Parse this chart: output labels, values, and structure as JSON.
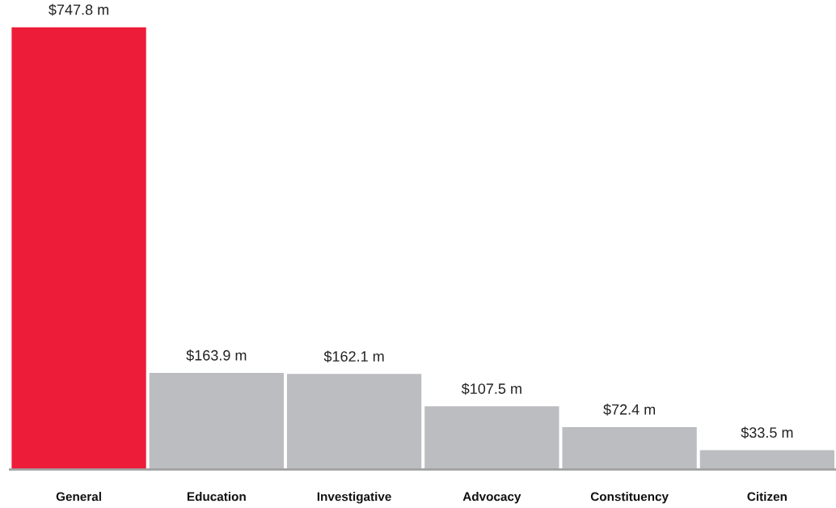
{
  "chart_data": {
    "type": "bar",
    "categories": [
      "General",
      "Education",
      "Investigative",
      "Advocacy",
      "Constituency",
      "Citizen"
    ],
    "values": [
      747.8,
      163.9,
      162.1,
      107.5,
      72.4,
      33.5
    ],
    "colors": [
      "#ed1c39",
      "#bcbdc0",
      "#bcbdc0",
      "#bcbdc0",
      "#bcbdc0",
      "#bcbdc0"
    ],
    "value_labels": [
      "$747.8 m",
      "$163.9 m",
      "$162.1 m",
      "$107.5 m",
      "$72.4 m",
      "$33.5 m"
    ],
    "grid": false,
    "legend": false
  }
}
